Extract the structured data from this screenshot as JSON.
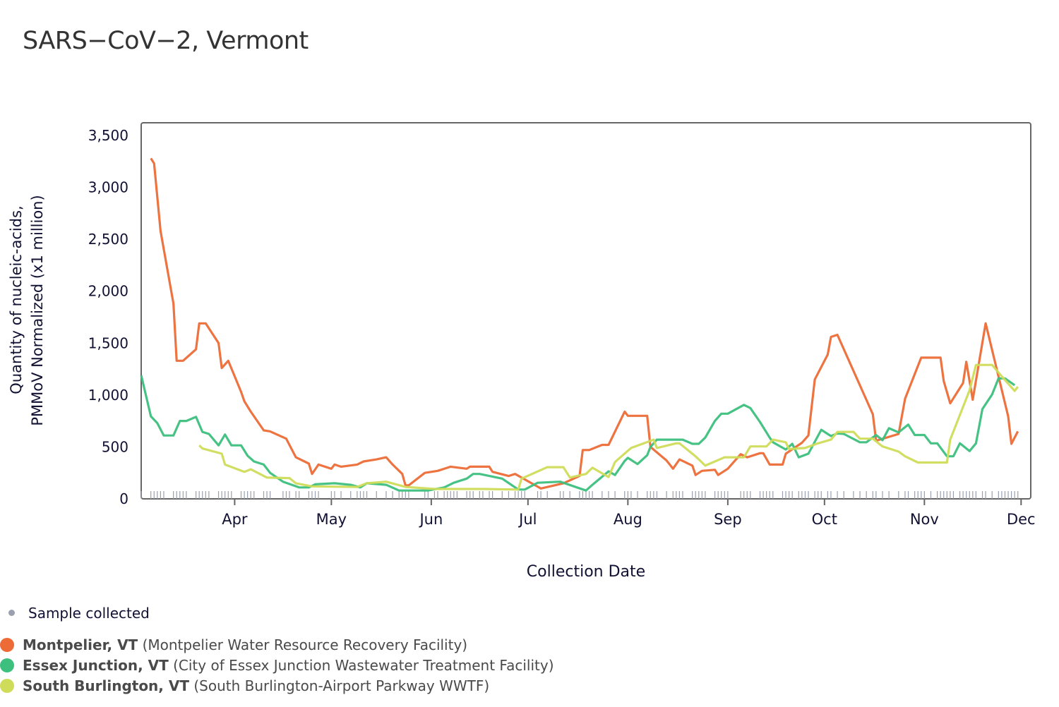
{
  "chart_data": {
    "type": "line",
    "title": "SARS−CoV−2, Vermont",
    "xlabel": "Collection Date",
    "ylabel": [
      "Quantity of nucleic-acids,",
      "PMMoV Normalized (x1 million)"
    ],
    "ylim": [
      0,
      3500
    ],
    "yticks": [
      0,
      500,
      1000,
      1500,
      2000,
      2500,
      3000,
      3500
    ],
    "ytick_labels": [
      "0",
      "500",
      "1,000",
      "1,500",
      "2,000",
      "2,500",
      "3,000",
      "3,500"
    ],
    "xlim": [
      "03-03",
      "12-04"
    ],
    "xticks": [
      "04-01",
      "05-01",
      "06-01",
      "07-01",
      "08-01",
      "09-01",
      "10-01",
      "11-01",
      "12-01"
    ],
    "xtick_labels": [
      "Apr",
      "May",
      "Jun",
      "Jul",
      "Aug",
      "Sep",
      "Oct",
      "Nov",
      "Dec"
    ],
    "grid": false,
    "legend_placement": "bottom-left",
    "sample_legend": {
      "label": "Sample collected",
      "color": "#9aa0ad"
    },
    "series": [
      {
        "name": "Montpelier, VT",
        "facility": "(Montpelier Water Resource Recovery Facility)",
        "color": "#ec6b37",
        "points": [
          [
            "03-06",
            3280
          ],
          [
            "03-07",
            3230
          ],
          [
            "03-09",
            2580
          ],
          [
            "03-13",
            1880
          ],
          [
            "03-14",
            1330
          ],
          [
            "03-16",
            1330
          ],
          [
            "03-20",
            1440
          ],
          [
            "03-21",
            1690
          ],
          [
            "03-23",
            1690
          ],
          [
            "03-27",
            1500
          ],
          [
            "03-28",
            1260
          ],
          [
            "03-30",
            1330
          ],
          [
            "04-03",
            1030
          ],
          [
            "04-04",
            940
          ],
          [
            "04-06",
            840
          ],
          [
            "04-10",
            660
          ],
          [
            "04-12",
            650
          ],
          [
            "04-17",
            580
          ],
          [
            "04-20",
            400
          ],
          [
            "04-24",
            340
          ],
          [
            "04-25",
            240
          ],
          [
            "04-27",
            330
          ],
          [
            "05-01",
            290
          ],
          [
            "05-02",
            330
          ],
          [
            "05-04",
            310
          ],
          [
            "05-09",
            330
          ],
          [
            "05-11",
            360
          ],
          [
            "05-15",
            380
          ],
          [
            "05-18",
            400
          ],
          [
            "05-20",
            330
          ],
          [
            "05-23",
            240
          ],
          [
            "05-24",
            130
          ],
          [
            "05-25",
            130
          ],
          [
            "05-30",
            250
          ],
          [
            "06-03",
            270
          ],
          [
            "06-06",
            300
          ],
          [
            "06-07",
            310
          ],
          [
            "06-12",
            290
          ],
          [
            "06-13",
            310
          ],
          [
            "06-19",
            310
          ],
          [
            "06-20",
            260
          ],
          [
            "06-25",
            220
          ],
          [
            "06-27",
            240
          ],
          [
            "07-05",
            100
          ],
          [
            "07-12",
            150
          ],
          [
            "07-17",
            220
          ],
          [
            "07-18",
            470
          ],
          [
            "07-20",
            470
          ],
          [
            "07-24",
            520
          ],
          [
            "07-26",
            520
          ],
          [
            "07-31",
            840
          ],
          [
            "08-01",
            800
          ],
          [
            "08-07",
            800
          ],
          [
            "08-08",
            500
          ],
          [
            "08-13",
            370
          ],
          [
            "08-15",
            290
          ],
          [
            "08-17",
            380
          ],
          [
            "08-21",
            320
          ],
          [
            "08-22",
            230
          ],
          [
            "08-24",
            270
          ],
          [
            "08-28",
            280
          ],
          [
            "08-29",
            230
          ],
          [
            "09-01",
            290
          ],
          [
            "09-05",
            430
          ],
          [
            "09-07",
            400
          ],
          [
            "09-11",
            440
          ],
          [
            "09-12",
            440
          ],
          [
            "09-14",
            330
          ],
          [
            "09-18",
            330
          ],
          [
            "09-19",
            435
          ],
          [
            "09-24",
            540
          ],
          [
            "09-26",
            610
          ],
          [
            "09-28",
            1150
          ],
          [
            "10-02",
            1390
          ],
          [
            "10-03",
            1560
          ],
          [
            "10-05",
            1580
          ],
          [
            "10-16",
            815
          ],
          [
            "10-17",
            560
          ],
          [
            "10-24",
            625
          ],
          [
            "10-26",
            965
          ],
          [
            "10-31",
            1360
          ],
          [
            "11-06",
            1360
          ],
          [
            "11-07",
            1135
          ],
          [
            "11-09",
            920
          ],
          [
            "11-13",
            1115
          ],
          [
            "11-14",
            1320
          ],
          [
            "11-16",
            955
          ],
          [
            "11-20",
            1690
          ],
          [
            "11-27",
            795
          ],
          [
            "11-28",
            530
          ],
          [
            "11-30",
            650
          ]
        ]
      },
      {
        "name": "Essex Junction, VT",
        "facility": "(City of Essex Junction Wastewater Treatment Facility)",
        "color": "#3dbf7e",
        "points": [
          [
            "03-03",
            1190
          ],
          [
            "03-06",
            795
          ],
          [
            "03-08",
            730
          ],
          [
            "03-10",
            610
          ],
          [
            "03-13",
            610
          ],
          [
            "03-15",
            750
          ],
          [
            "03-17",
            750
          ],
          [
            "03-20",
            790
          ],
          [
            "03-22",
            645
          ],
          [
            "03-24",
            625
          ],
          [
            "03-27",
            515
          ],
          [
            "03-29",
            620
          ],
          [
            "03-31",
            515
          ],
          [
            "04-03",
            515
          ],
          [
            "04-05",
            415
          ],
          [
            "04-07",
            360
          ],
          [
            "04-10",
            330
          ],
          [
            "04-12",
            250
          ],
          [
            "04-16",
            165
          ],
          [
            "04-21",
            110
          ],
          [
            "04-24",
            110
          ],
          [
            "04-26",
            140
          ],
          [
            "05-02",
            150
          ],
          [
            "05-07",
            135
          ],
          [
            "05-10",
            110
          ],
          [
            "05-12",
            150
          ],
          [
            "05-18",
            135
          ],
          [
            "05-22",
            80
          ],
          [
            "05-31",
            80
          ],
          [
            "06-05",
            110
          ],
          [
            "06-08",
            155
          ],
          [
            "06-09",
            165
          ],
          [
            "06-12",
            195
          ],
          [
            "06-14",
            240
          ],
          [
            "06-16",
            240
          ],
          [
            "06-23",
            195
          ],
          [
            "06-28",
            90
          ],
          [
            "06-30",
            90
          ],
          [
            "07-04",
            155
          ],
          [
            "07-11",
            165
          ],
          [
            "07-19",
            80
          ],
          [
            "07-21",
            135
          ],
          [
            "07-26",
            265
          ],
          [
            "07-28",
            230
          ],
          [
            "07-31",
            365
          ],
          [
            "08-01",
            395
          ],
          [
            "08-04",
            335
          ],
          [
            "08-07",
            420
          ],
          [
            "08-08",
            500
          ],
          [
            "08-10",
            570
          ],
          [
            "08-18",
            570
          ],
          [
            "08-21",
            530
          ],
          [
            "08-23",
            530
          ],
          [
            "08-25",
            590
          ],
          [
            "08-28",
            750
          ],
          [
            "08-30",
            820
          ],
          [
            "09-01",
            820
          ],
          [
            "09-06",
            905
          ],
          [
            "09-08",
            875
          ],
          [
            "09-11",
            740
          ],
          [
            "09-14",
            590
          ],
          [
            "09-15",
            545
          ],
          [
            "09-19",
            475
          ],
          [
            "09-21",
            530
          ],
          [
            "09-23",
            400
          ],
          [
            "09-26",
            435
          ],
          [
            "09-30",
            665
          ],
          [
            "10-03",
            605
          ],
          [
            "10-05",
            630
          ],
          [
            "10-07",
            625
          ],
          [
            "10-12",
            545
          ],
          [
            "10-14",
            545
          ],
          [
            "10-17",
            615
          ],
          [
            "10-19",
            565
          ],
          [
            "10-21",
            680
          ],
          [
            "10-24",
            640
          ],
          [
            "10-27",
            715
          ],
          [
            "10-29",
            615
          ],
          [
            "11-01",
            615
          ],
          [
            "11-03",
            535
          ],
          [
            "11-05",
            535
          ],
          [
            "11-08",
            410
          ],
          [
            "11-10",
            410
          ],
          [
            "11-12",
            535
          ],
          [
            "11-15",
            460
          ],
          [
            "11-17",
            535
          ],
          [
            "11-19",
            865
          ],
          [
            "11-22",
            1005
          ],
          [
            "11-24",
            1160
          ],
          [
            "11-26",
            1160
          ],
          [
            "11-29",
            1095
          ]
        ]
      },
      {
        "name": "South Burlington, VT",
        "facility": "(South Burlington-Airport Parkway WWTF)",
        "color": "#cfdc5a",
        "points": [
          [
            "03-21",
            515
          ],
          [
            "03-22",
            485
          ],
          [
            "03-28",
            435
          ],
          [
            "03-29",
            330
          ],
          [
            "04-04",
            260
          ],
          [
            "04-06",
            285
          ],
          [
            "04-11",
            205
          ],
          [
            "04-18",
            200
          ],
          [
            "04-20",
            150
          ],
          [
            "04-25",
            120
          ],
          [
            "05-09",
            115
          ],
          [
            "05-12",
            150
          ],
          [
            "05-18",
            165
          ],
          [
            "05-24",
            115
          ],
          [
            "06-02",
            95
          ],
          [
            "06-08",
            95
          ],
          [
            "06-17",
            95
          ],
          [
            "06-28",
            90
          ],
          [
            "06-29",
            195
          ],
          [
            "07-07",
            305
          ],
          [
            "07-12",
            305
          ],
          [
            "07-14",
            205
          ],
          [
            "07-19",
            240
          ],
          [
            "07-21",
            300
          ],
          [
            "07-26",
            210
          ],
          [
            "07-28",
            355
          ],
          [
            "08-02",
            490
          ],
          [
            "08-09",
            570
          ],
          [
            "08-10",
            490
          ],
          [
            "08-16",
            535
          ],
          [
            "08-17",
            535
          ],
          [
            "08-22",
            410
          ],
          [
            "08-25",
            320
          ],
          [
            "08-31",
            400
          ],
          [
            "09-06",
            400
          ],
          [
            "09-08",
            505
          ],
          [
            "09-13",
            505
          ],
          [
            "09-15",
            570
          ],
          [
            "09-19",
            545
          ],
          [
            "09-20",
            480
          ],
          [
            "09-25",
            490
          ],
          [
            "09-29",
            535
          ],
          [
            "10-03",
            570
          ],
          [
            "10-05",
            645
          ],
          [
            "10-10",
            645
          ],
          [
            "10-12",
            580
          ],
          [
            "10-16",
            580
          ],
          [
            "10-19",
            505
          ],
          [
            "10-24",
            455
          ],
          [
            "10-26",
            410
          ],
          [
            "10-30",
            350
          ],
          [
            "11-08",
            350
          ],
          [
            "11-09",
            570
          ],
          [
            "11-15",
            1045
          ],
          [
            "11-17",
            1290
          ],
          [
            "11-22",
            1290
          ],
          [
            "11-25",
            1180
          ],
          [
            "11-29",
            1040
          ],
          [
            "11-30",
            1080
          ]
        ]
      }
    ]
  }
}
